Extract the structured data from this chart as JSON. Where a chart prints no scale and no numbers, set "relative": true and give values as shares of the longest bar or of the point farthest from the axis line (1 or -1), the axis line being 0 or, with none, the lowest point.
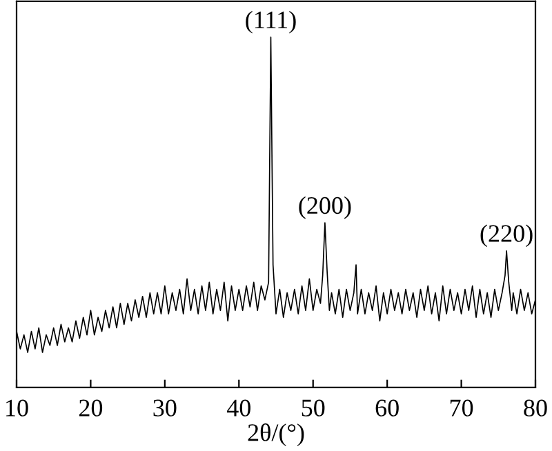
{
  "chart_data": {
    "type": "line",
    "relative": true,
    "xlabel": "2θ/(°)",
    "xlim": [
      10,
      80
    ],
    "xticks": [
      10,
      20,
      30,
      40,
      50,
      60,
      70,
      80
    ],
    "grid": false,
    "marker": "none",
    "line_style": "solid",
    "x": [
      10.0,
      10.5,
      11,
      11.5,
      12,
      12.5,
      13,
      13.5,
      14,
      14.5,
      15,
      15.5,
      16,
      16.5,
      17,
      17.5,
      18,
      18.5,
      19,
      19.5,
      20,
      20.5,
      21,
      21.5,
      22,
      22.5,
      23,
      23.5,
      24,
      24.5,
      25,
      25.5,
      26,
      26.5,
      27,
      27.5,
      28,
      28.5,
      29,
      29.5,
      30,
      30.5,
      31,
      31.5,
      32,
      32.5,
      33,
      33.5,
      34,
      34.5,
      35,
      35.5,
      36,
      36.5,
      37,
      37.5,
      38,
      38.5,
      39,
      39.5,
      40,
      40.5,
      41,
      41.5,
      42,
      42.5,
      43,
      43.5,
      44,
      44.3,
      44.6,
      45,
      45.5,
      46,
      46.5,
      47,
      47.5,
      48,
      48.5,
      49,
      49.5,
      50,
      50.5,
      51,
      51.3,
      51.6,
      51.9,
      52.2,
      52.5,
      53,
      53.5,
      54,
      54.5,
      55,
      55.5,
      55.8,
      56,
      56.5,
      57,
      57.5,
      58,
      58.5,
      59,
      59.5,
      60,
      60.5,
      61,
      61.5,
      62,
      62.5,
      63,
      63.5,
      64,
      64.5,
      65,
      65.5,
      66,
      66.5,
      67,
      67.5,
      68,
      68.5,
      69,
      69.5,
      70,
      70.5,
      71,
      71.5,
      72,
      72.5,
      73,
      73.5,
      74,
      74.5,
      75,
      75.5,
      75.9,
      76.1,
      76.4,
      76.8,
      77,
      77.5,
      78,
      78.5,
      79,
      79.5,
      80
    ],
    "series": [
      {
        "color": "#000000",
        "values": [
          0.16,
          0.11,
          0.15,
          0.1,
          0.16,
          0.11,
          0.17,
          0.1,
          0.15,
          0.12,
          0.17,
          0.12,
          0.18,
          0.13,
          0.17,
          0.13,
          0.19,
          0.14,
          0.2,
          0.15,
          0.22,
          0.15,
          0.2,
          0.16,
          0.22,
          0.17,
          0.23,
          0.17,
          0.24,
          0.18,
          0.24,
          0.19,
          0.25,
          0.2,
          0.26,
          0.2,
          0.27,
          0.21,
          0.27,
          0.21,
          0.29,
          0.21,
          0.27,
          0.22,
          0.28,
          0.21,
          0.31,
          0.22,
          0.28,
          0.21,
          0.29,
          0.22,
          0.3,
          0.21,
          0.28,
          0.22,
          0.3,
          0.19,
          0.29,
          0.22,
          0.28,
          0.22,
          0.29,
          0.23,
          0.3,
          0.22,
          0.29,
          0.25,
          0.3,
          1.0,
          0.35,
          0.21,
          0.28,
          0.2,
          0.27,
          0.22,
          0.28,
          0.21,
          0.29,
          0.22,
          0.31,
          0.22,
          0.28,
          0.24,
          0.32,
          0.47,
          0.33,
          0.22,
          0.27,
          0.21,
          0.28,
          0.2,
          0.28,
          0.22,
          0.27,
          0.35,
          0.21,
          0.28,
          0.21,
          0.27,
          0.22,
          0.29,
          0.19,
          0.27,
          0.21,
          0.28,
          0.22,
          0.27,
          0.21,
          0.28,
          0.22,
          0.27,
          0.2,
          0.28,
          0.22,
          0.29,
          0.21,
          0.27,
          0.19,
          0.29,
          0.21,
          0.28,
          0.22,
          0.27,
          0.21,
          0.28,
          0.22,
          0.29,
          0.2,
          0.28,
          0.21,
          0.27,
          0.2,
          0.28,
          0.22,
          0.27,
          0.32,
          0.39,
          0.3,
          0.22,
          0.27,
          0.21,
          0.28,
          0.22,
          0.27,
          0.21,
          0.25
        ]
      }
    ],
    "annotations": [
      {
        "text": "(111)",
        "x": 44.3,
        "y": 1.0
      },
      {
        "text": "(200)",
        "x": 51.6,
        "y": 0.47
      },
      {
        "text": "(220)",
        "x": 76.1,
        "y": 0.39
      }
    ]
  }
}
